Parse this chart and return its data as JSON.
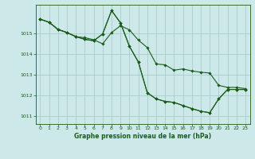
{
  "title": "Graphe pression niveau de la mer (hPa)",
  "background_color": "#cce8e8",
  "grid_color": "#aacccc",
  "line_color": "#1a5c1a",
  "xlim": [
    -0.5,
    23.5
  ],
  "ylim": [
    1010.6,
    1016.4
  ],
  "yticks": [
    1011,
    1012,
    1013,
    1014,
    1015
  ],
  "xticks": [
    0,
    1,
    2,
    3,
    4,
    5,
    6,
    7,
    8,
    9,
    10,
    11,
    12,
    13,
    14,
    15,
    16,
    17,
    18,
    19,
    20,
    21,
    22,
    23
  ],
  "line_A": [
    1015.7,
    1015.55,
    1015.2,
    1015.05,
    1014.85,
    1014.8,
    1014.7,
    1014.5,
    1015.05,
    1015.38,
    1015.18,
    1014.68,
    1014.32,
    1013.52,
    1013.48,
    1013.22,
    1013.28,
    1013.18,
    1013.12,
    1013.08,
    1012.48,
    1012.38,
    1012.38,
    1012.32
  ],
  "line_B": [
    1015.7,
    1015.55,
    1015.2,
    1015.05,
    1014.85,
    1014.72,
    1014.65,
    1014.98,
    1016.12,
    1015.52,
    1014.38,
    1013.62,
    1012.12,
    1011.82,
    1011.7,
    1011.65,
    1011.5,
    1011.35,
    1011.22,
    1011.15,
    1011.82,
    1012.28,
    1012.28,
    1012.28
  ],
  "line_C": [
    1015.7,
    1015.55,
    1015.2,
    1015.05,
    1014.85,
    1014.72,
    1014.65,
    1014.98,
    1016.12,
    1015.52,
    1014.38,
    1013.62,
    1012.12,
    1011.82,
    1011.7,
    1011.65,
    1011.5,
    1011.35,
    1011.22,
    1011.15,
    1011.82,
    1012.28,
    1012.28,
    1012.28
  ]
}
